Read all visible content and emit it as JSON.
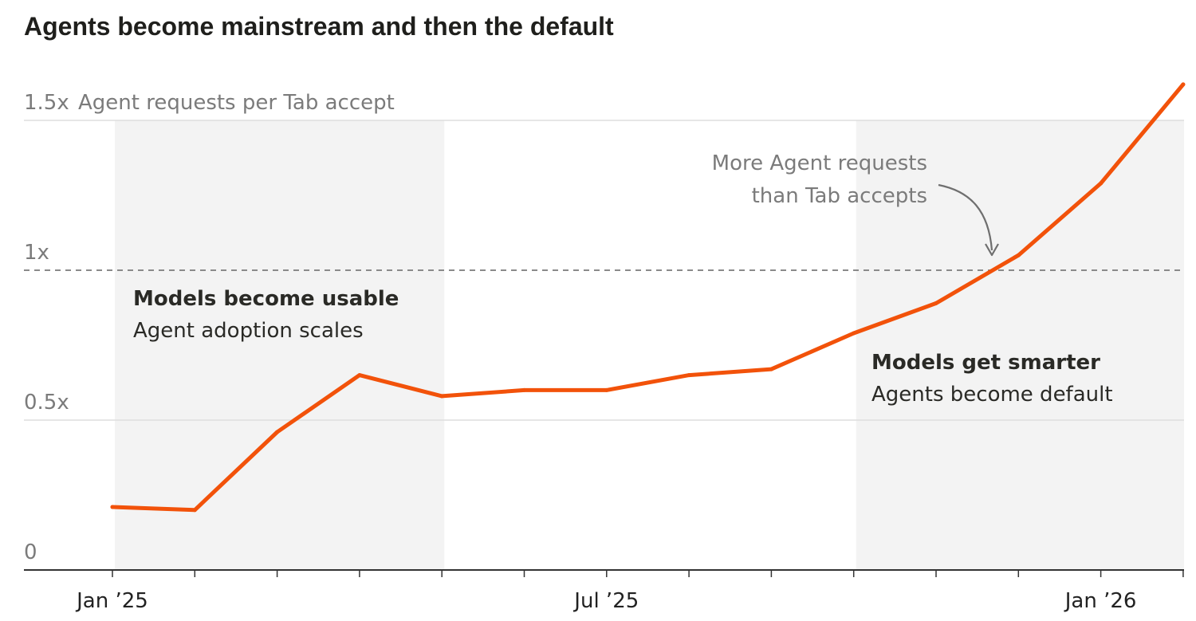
{
  "chart_data": {
    "type": "line",
    "title": "Agents become mainstream and then the default",
    "ylabel": "Agent requests per Tab accept",
    "ylim": [
      0,
      1.5
    ],
    "y_ticks": [
      {
        "value": 0,
        "label": "0"
      },
      {
        "value": 0.5,
        "label": "0.5x"
      },
      {
        "value": 1,
        "label": "1x"
      },
      {
        "value": 1.5,
        "label": "1.5x"
      }
    ],
    "x_months": [
      "2025-01",
      "2025-02",
      "2025-03",
      "2025-04",
      "2025-05",
      "2025-06",
      "2025-07",
      "2025-08",
      "2025-09",
      "2025-10",
      "2025-11",
      "2025-12",
      "2026-01",
      "2026-02"
    ],
    "x_tick_labels": [
      {
        "month": "2025-01",
        "label": "Jan ’25"
      },
      {
        "month": "2025-07",
        "label": "Jul ’25"
      },
      {
        "month": "2026-01",
        "label": "Jan ’26"
      }
    ],
    "series": [
      {
        "color": "#f2520a",
        "points": [
          {
            "x": "2025-01",
            "y": 0.21
          },
          {
            "x": "2025-02",
            "y": 0.2
          },
          {
            "x": "2025-03",
            "y": 0.46
          },
          {
            "x": "2025-04",
            "y": 0.65
          },
          {
            "x": "2025-05",
            "y": 0.58
          },
          {
            "x": "2025-06",
            "y": 0.6
          },
          {
            "x": "2025-07",
            "y": 0.6
          },
          {
            "x": "2025-08",
            "y": 0.65
          },
          {
            "x": "2025-09",
            "y": 0.67
          },
          {
            "x": "2025-10",
            "y": 0.79
          },
          {
            "x": "2025-11",
            "y": 0.89
          },
          {
            "x": "2025-12",
            "y": 1.05
          },
          {
            "x": "2026-01",
            "y": 1.29
          },
          {
            "x": "2026-02",
            "y": 1.62
          }
        ]
      }
    ],
    "reference_line": {
      "y": 1,
      "style": "dashed"
    },
    "shaded_periods": [
      {
        "from": "2025-01",
        "to": "2025-05",
        "heading": "Models become usable",
        "text": "Agent adoption scales"
      },
      {
        "from": "2025-10",
        "to": "2026-02",
        "heading": "Models get smarter",
        "text": "Agents become default"
      }
    ],
    "callout": {
      "lines": [
        "More Agent requests",
        "than Tab accepts"
      ],
      "target": {
        "x": "2025-12",
        "y": 1.0
      }
    },
    "grid": true,
    "legend": "none",
    "colors": {
      "line": "#f2520a",
      "shade": "#f3f3f3",
      "grid": "#dedede",
      "axis": "#333333",
      "reference": "#8a8a8a"
    }
  }
}
